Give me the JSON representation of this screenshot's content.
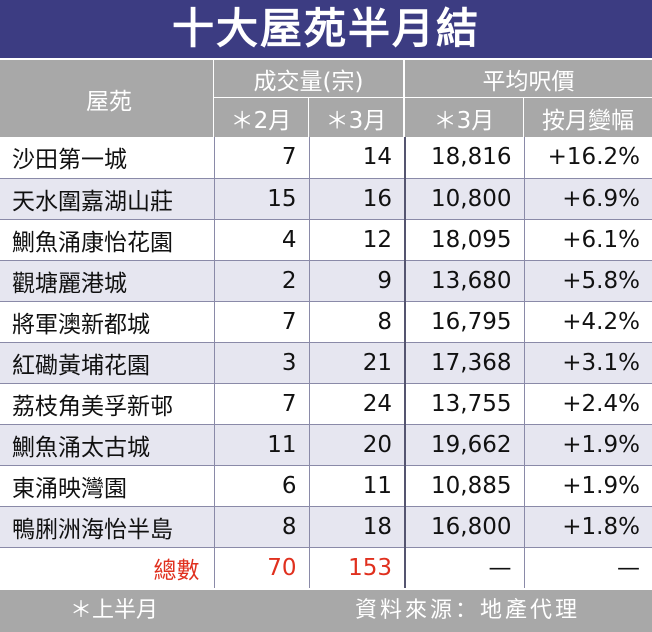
{
  "title": "十大屋苑半月結",
  "header": {
    "estate": "屋苑",
    "volume": "成交量(宗)",
    "volume_feb": "＊2月",
    "volume_mar": "＊3月",
    "price": "平均呎價",
    "price_mar": "＊3月",
    "price_change": "按月變幅"
  },
  "rows": [
    {
      "name": "沙田第一城",
      "feb": "7",
      "mar": "14",
      "price": "18,816",
      "change": "+16.2%"
    },
    {
      "name": "天水圍嘉湖山莊",
      "feb": "15",
      "mar": "16",
      "price": "10,800",
      "change": "+6.9%"
    },
    {
      "name": "鰂魚涌康怡花園",
      "feb": "4",
      "mar": "12",
      "price": "18,095",
      "change": "+6.1%"
    },
    {
      "name": "觀塘麗港城",
      "feb": "2",
      "mar": "9",
      "price": "13,680",
      "change": "+5.8%"
    },
    {
      "name": "將軍澳新都城",
      "feb": "7",
      "mar": "8",
      "price": "16,795",
      "change": "+4.2%"
    },
    {
      "name": "紅磡黃埔花園",
      "feb": "3",
      "mar": "21",
      "price": "17,368",
      "change": "+3.1%"
    },
    {
      "name": "荔枝角美孚新邨",
      "feb": "7",
      "mar": "24",
      "price": "13,755",
      "change": "+2.4%"
    },
    {
      "name": "鰂魚涌太古城",
      "feb": "11",
      "mar": "20",
      "price": "19,662",
      "change": "+1.9%"
    },
    {
      "name": "東涌映灣園",
      "feb": "6",
      "mar": "11",
      "price": "10,885",
      "change": "+1.9%"
    },
    {
      "name": "鴨脷洲海怡半島",
      "feb": "8",
      "mar": "18",
      "price": "16,800",
      "change": "+1.8%"
    }
  ],
  "total": {
    "label": "總數",
    "feb": "70",
    "mar": "153",
    "price": "—",
    "change": "—"
  },
  "footer": {
    "note": "＊上半月",
    "source": "資料來源：地產代理"
  },
  "colors": {
    "title_bg": "#3c3c82",
    "header_bg": "#a8a8a8",
    "alt_row": "#e6e6f0",
    "total_text": "#e0301e"
  }
}
